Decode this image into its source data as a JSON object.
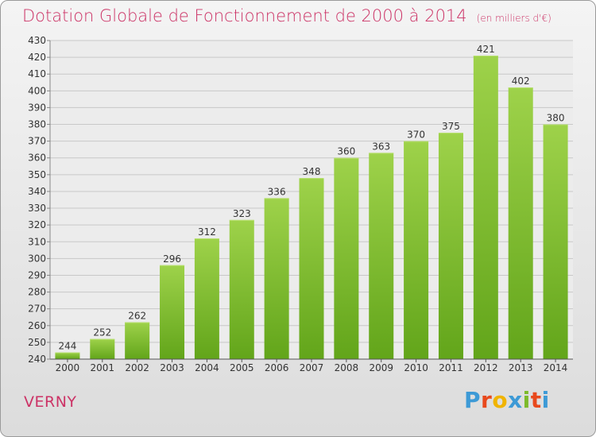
{
  "header": {
    "title": "Dotation Globale de Fonctionnement de 2000 à 2014",
    "unit": "(en milliers d'€)"
  },
  "footer": {
    "commune": "VERNY",
    "brand": "Proxiti",
    "brand_colors": [
      "#3d9ad6",
      "#e8491d",
      "#f0b400",
      "#3d9ad6",
      "#7cba2a",
      "#e8491d",
      "#3d9ad6"
    ]
  },
  "chart_data": {
    "type": "bar",
    "categories": [
      "2000",
      "2001",
      "2002",
      "2003",
      "2004",
      "2005",
      "2006",
      "2007",
      "2008",
      "2009",
      "2010",
      "2011",
      "2012",
      "2013",
      "2014"
    ],
    "values": [
      244,
      252,
      262,
      296,
      312,
      323,
      336,
      348,
      360,
      363,
      370,
      375,
      421,
      402,
      380
    ],
    "ylim": [
      240,
      430
    ],
    "yticks": [
      240,
      250,
      260,
      270,
      280,
      290,
      300,
      310,
      320,
      330,
      340,
      350,
      360,
      370,
      380,
      390,
      400,
      410,
      420,
      430
    ],
    "grid": true,
    "colors": {
      "bar_light": "#9ed24a",
      "bar_dark": "#62a51a",
      "text": "#333333",
      "grid": "#c8c8c8"
    }
  }
}
